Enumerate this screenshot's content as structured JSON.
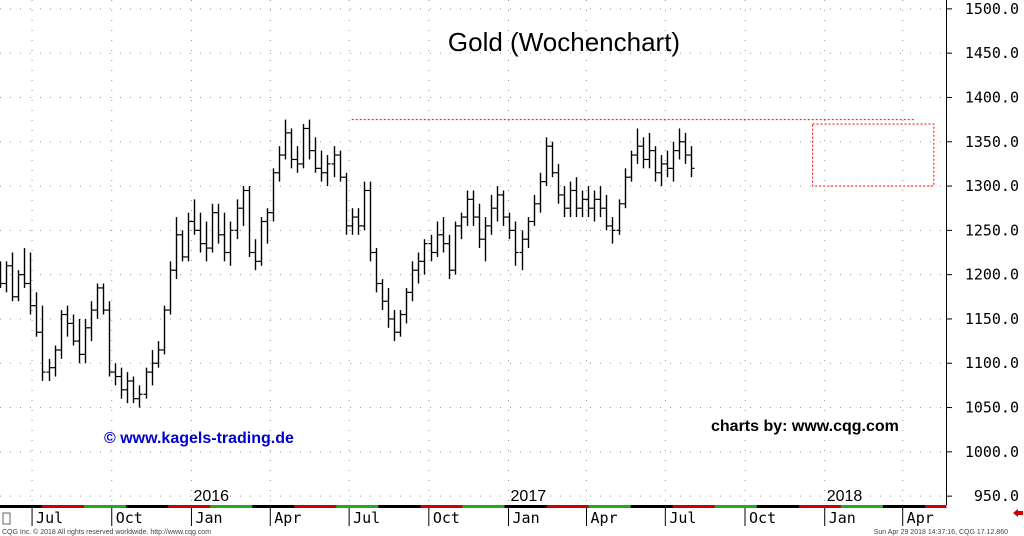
{
  "chart_data": {
    "type": "ohlc",
    "title": "Gold (Wochenchart)",
    "ylim": [
      940,
      1510
    ],
    "y_ticks": [
      {
        "value": 1500,
        "label": "1500.0"
      },
      {
        "value": 1450,
        "label": "1450.0"
      },
      {
        "value": 1400,
        "label": "1400.0"
      },
      {
        "value": 1350,
        "label": "1350.0"
      },
      {
        "value": 1300,
        "label": "1300.0"
      },
      {
        "value": 1250,
        "label": "1250.0"
      },
      {
        "value": 1200,
        "label": "1200.0"
      },
      {
        "value": 1150,
        "label": "1150.0"
      },
      {
        "value": 1100,
        "label": "1100.0"
      },
      {
        "value": 1050,
        "label": "1050.0"
      },
      {
        "value": 1000,
        "label": "1000.0"
      },
      {
        "value": 950,
        "label": "950.0"
      }
    ],
    "x_range": [
      "2015-05-25",
      "2018-05-21"
    ],
    "x_ticks": [
      {
        "date": "2015-07-01",
        "label": "Jul"
      },
      {
        "date": "2015-10-01",
        "label": "Oct"
      },
      {
        "date": "2016-01-01",
        "label": "Jan"
      },
      {
        "date": "2016-04-01",
        "label": "Apr"
      },
      {
        "date": "2016-07-01",
        "label": "Jul"
      },
      {
        "date": "2016-10-01",
        "label": "Oct"
      },
      {
        "date": "2017-01-01",
        "label": "Jan"
      },
      {
        "date": "2017-04-01",
        "label": "Apr"
      },
      {
        "date": "2017-07-01",
        "label": "Jul"
      },
      {
        "date": "2017-10-01",
        "label": "Oct"
      },
      {
        "date": "2018-01-01",
        "label": "Jan"
      },
      {
        "date": "2018-04-01",
        "label": "Apr"
      }
    ],
    "year_labels": [
      {
        "date": "2016-01-01",
        "label": "2016"
      },
      {
        "date": "2017-01-01",
        "label": "2017"
      },
      {
        "date": "2018-01-01",
        "label": "2018"
      }
    ],
    "start_date": "2015-05-25",
    "interval": "weekly",
    "bars": [
      [
        1205,
        1215,
        1185,
        1190
      ],
      [
        1190,
        1215,
        1180,
        1210
      ],
      [
        1210,
        1225,
        1170,
        1175
      ],
      [
        1175,
        1205,
        1170,
        1200
      ],
      [
        1200,
        1230,
        1185,
        1190
      ],
      [
        1190,
        1225,
        1155,
        1165
      ],
      [
        1165,
        1180,
        1130,
        1135
      ],
      [
        1135,
        1165,
        1080,
        1090
      ],
      [
        1090,
        1105,
        1080,
        1095
      ],
      [
        1095,
        1120,
        1085,
        1115
      ],
      [
        1115,
        1160,
        1105,
        1155
      ],
      [
        1155,
        1165,
        1130,
        1145
      ],
      [
        1145,
        1155,
        1120,
        1125
      ],
      [
        1125,
        1150,
        1100,
        1110
      ],
      [
        1110,
        1150,
        1100,
        1140
      ],
      [
        1140,
        1170,
        1125,
        1160
      ],
      [
        1160,
        1190,
        1150,
        1185
      ],
      [
        1185,
        1190,
        1155,
        1160
      ],
      [
        1160,
        1170,
        1085,
        1090
      ],
      [
        1090,
        1100,
        1075,
        1085
      ],
      [
        1085,
        1095,
        1060,
        1070
      ],
      [
        1070,
        1090,
        1055,
        1080
      ],
      [
        1080,
        1085,
        1055,
        1060
      ],
      [
        1060,
        1075,
        1050,
        1065
      ],
      [
        1065,
        1095,
        1060,
        1090
      ],
      [
        1090,
        1115,
        1075,
        1100
      ],
      [
        1100,
        1125,
        1095,
        1115
      ],
      [
        1115,
        1165,
        1110,
        1160
      ],
      [
        1160,
        1215,
        1155,
        1205
      ],
      [
        1205,
        1265,
        1195,
        1245
      ],
      [
        1245,
        1250,
        1215,
        1220
      ],
      [
        1220,
        1270,
        1215,
        1260
      ],
      [
        1260,
        1285,
        1245,
        1250
      ],
      [
        1250,
        1270,
        1225,
        1235
      ],
      [
        1235,
        1260,
        1215,
        1230
      ],
      [
        1230,
        1280,
        1225,
        1270
      ],
      [
        1270,
        1280,
        1235,
        1245
      ],
      [
        1245,
        1270,
        1215,
        1225
      ],
      [
        1225,
        1260,
        1210,
        1250
      ],
      [
        1250,
        1285,
        1240,
        1275
      ],
      [
        1275,
        1300,
        1255,
        1295
      ],
      [
        1295,
        1300,
        1220,
        1225
      ],
      [
        1225,
        1240,
        1205,
        1215
      ],
      [
        1215,
        1265,
        1210,
        1260
      ],
      [
        1260,
        1275,
        1235,
        1270
      ],
      [
        1270,
        1320,
        1260,
        1315
      ],
      [
        1315,
        1345,
        1305,
        1335
      ],
      [
        1335,
        1375,
        1330,
        1360
      ],
      [
        1360,
        1365,
        1320,
        1330
      ],
      [
        1330,
        1345,
        1315,
        1325
      ],
      [
        1325,
        1370,
        1320,
        1365
      ],
      [
        1365,
        1375,
        1330,
        1340
      ],
      [
        1340,
        1355,
        1315,
        1320
      ],
      [
        1320,
        1340,
        1305,
        1315
      ],
      [
        1315,
        1335,
        1300,
        1325
      ],
      [
        1325,
        1345,
        1310,
        1335
      ],
      [
        1335,
        1340,
        1305,
        1310
      ],
      [
        1310,
        1315,
        1245,
        1255
      ],
      [
        1255,
        1275,
        1245,
        1265
      ],
      [
        1265,
        1275,
        1245,
        1255
      ],
      [
        1255,
        1305,
        1250,
        1295
      ],
      [
        1295,
        1305,
        1215,
        1225
      ],
      [
        1225,
        1230,
        1180,
        1190
      ],
      [
        1190,
        1195,
        1160,
        1170
      ],
      [
        1170,
        1185,
        1140,
        1150
      ],
      [
        1150,
        1160,
        1125,
        1135
      ],
      [
        1135,
        1160,
        1130,
        1155
      ],
      [
        1155,
        1185,
        1145,
        1180
      ],
      [
        1180,
        1215,
        1170,
        1205
      ],
      [
        1205,
        1225,
        1190,
        1215
      ],
      [
        1215,
        1240,
        1200,
        1235
      ],
      [
        1235,
        1245,
        1215,
        1225
      ],
      [
        1225,
        1260,
        1220,
        1245
      ],
      [
        1245,
        1265,
        1225,
        1235
      ],
      [
        1235,
        1245,
        1195,
        1205
      ],
      [
        1205,
        1260,
        1200,
        1255
      ],
      [
        1255,
        1270,
        1240,
        1265
      ],
      [
        1265,
        1295,
        1255,
        1285
      ],
      [
        1285,
        1295,
        1255,
        1265
      ],
      [
        1265,
        1280,
        1230,
        1240
      ],
      [
        1240,
        1265,
        1215,
        1255
      ],
      [
        1255,
        1290,
        1245,
        1275
      ],
      [
        1275,
        1300,
        1260,
        1290
      ],
      [
        1290,
        1295,
        1255,
        1265
      ],
      [
        1265,
        1270,
        1240,
        1250
      ],
      [
        1250,
        1260,
        1210,
        1225
      ],
      [
        1225,
        1250,
        1205,
        1240
      ],
      [
        1240,
        1265,
        1230,
        1260
      ],
      [
        1260,
        1290,
        1255,
        1280
      ],
      [
        1280,
        1315,
        1270,
        1305
      ],
      [
        1305,
        1355,
        1300,
        1345
      ],
      [
        1345,
        1350,
        1310,
        1315
      ],
      [
        1315,
        1325,
        1280,
        1290
      ],
      [
        1290,
        1300,
        1265,
        1275
      ],
      [
        1275,
        1305,
        1265,
        1295
      ],
      [
        1295,
        1310,
        1265,
        1275
      ],
      [
        1275,
        1295,
        1265,
        1285
      ],
      [
        1285,
        1300,
        1265,
        1275
      ],
      [
        1275,
        1295,
        1260,
        1285
      ],
      [
        1285,
        1300,
        1265,
        1275
      ],
      [
        1275,
        1290,
        1250,
        1255
      ],
      [
        1255,
        1265,
        1235,
        1250
      ],
      [
        1250,
        1285,
        1245,
        1280
      ],
      [
        1280,
        1320,
        1275,
        1310
      ],
      [
        1310,
        1340,
        1305,
        1335
      ],
      [
        1335,
        1365,
        1325,
        1345
      ],
      [
        1345,
        1355,
        1320,
        1330
      ],
      [
        1330,
        1360,
        1320,
        1340
      ],
      [
        1340,
        1345,
        1305,
        1315
      ],
      [
        1315,
        1335,
        1300,
        1325
      ],
      [
        1325,
        1340,
        1310,
        1320
      ],
      [
        1320,
        1350,
        1305,
        1340
      ],
      [
        1340,
        1365,
        1330,
        1350
      ],
      [
        1350,
        1360,
        1325,
        1335
      ],
      [
        1335,
        1345,
        1310,
        1320
      ]
    ],
    "annotations": [
      {
        "type": "dashed-line",
        "color": "#ff0000",
        "from": [
          "2016-07-04",
          1375
        ],
        "to": [
          "2018-04-16",
          1375
        ]
      },
      {
        "type": "dashed-rect",
        "color": "#ff0000",
        "from": [
          "2017-12-18",
          1300
        ],
        "to": [
          "2018-05-07",
          1370
        ]
      }
    ],
    "grid": true,
    "grid_style": "dotted",
    "y_axis_position": "right",
    "bar_color": "#000000"
  },
  "watermarks": {
    "left": "© www.kagels-trading.de",
    "left_color": "#0000cc",
    "right": "charts by: www.cqg.com",
    "right_color": "#000000"
  },
  "footer": {
    "left": "CQG Inc. © 2018 All rights reserved worldwide. http://www.cqg.com",
    "right": "Sun Apr 29 2018 14:37:16, CQG 17.12.860"
  },
  "colors": {
    "axis_strip": [
      "#000000",
      "#cc0000",
      "#22aa22"
    ],
    "scroll_arrow": "#cc0000"
  }
}
